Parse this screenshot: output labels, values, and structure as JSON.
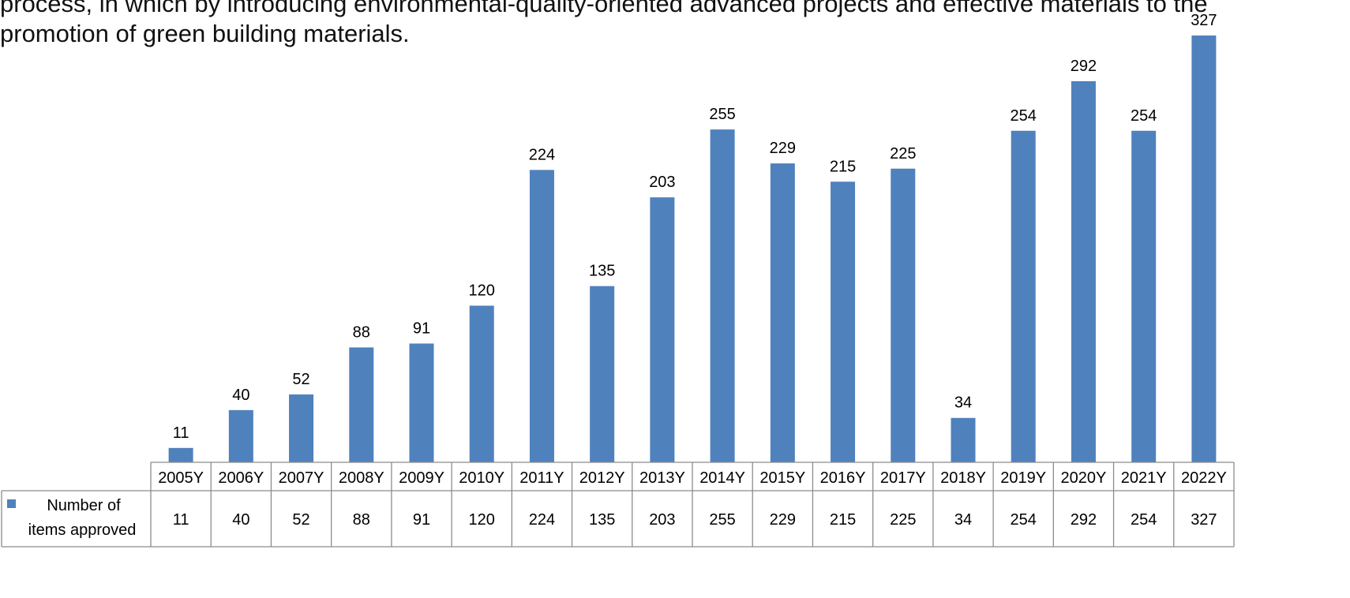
{
  "caption": {
    "line1": "process, in which by introducing environmental-quality-oriented advanced projects and effective materials to the",
    "line2": "promotion of green  building materials."
  },
  "colors": {
    "bar": "#4F81BD",
    "grid": "#8C8C8C",
    "text": "#000000"
  },
  "chart_data": {
    "type": "bar",
    "categories": [
      "2005Y",
      "2006Y",
      "2007Y",
      "2008Y",
      "2009Y",
      "2010Y",
      "2011Y",
      "2012Y",
      "2013Y",
      "2014Y",
      "2015Y",
      "2016Y",
      "2017Y",
      "2018Y",
      "2019Y",
      "2020Y",
      "2021Y",
      "2022Y"
    ],
    "series": [
      {
        "name": "Number of items approved",
        "values": [
          11,
          40,
          52,
          88,
          91,
          120,
          224,
          135,
          203,
          255,
          229,
          215,
          225,
          34,
          254,
          292,
          254,
          327
        ]
      }
    ],
    "data_labels": true,
    "data_table": true,
    "legend_icon": "square-icon",
    "grid": false
  }
}
